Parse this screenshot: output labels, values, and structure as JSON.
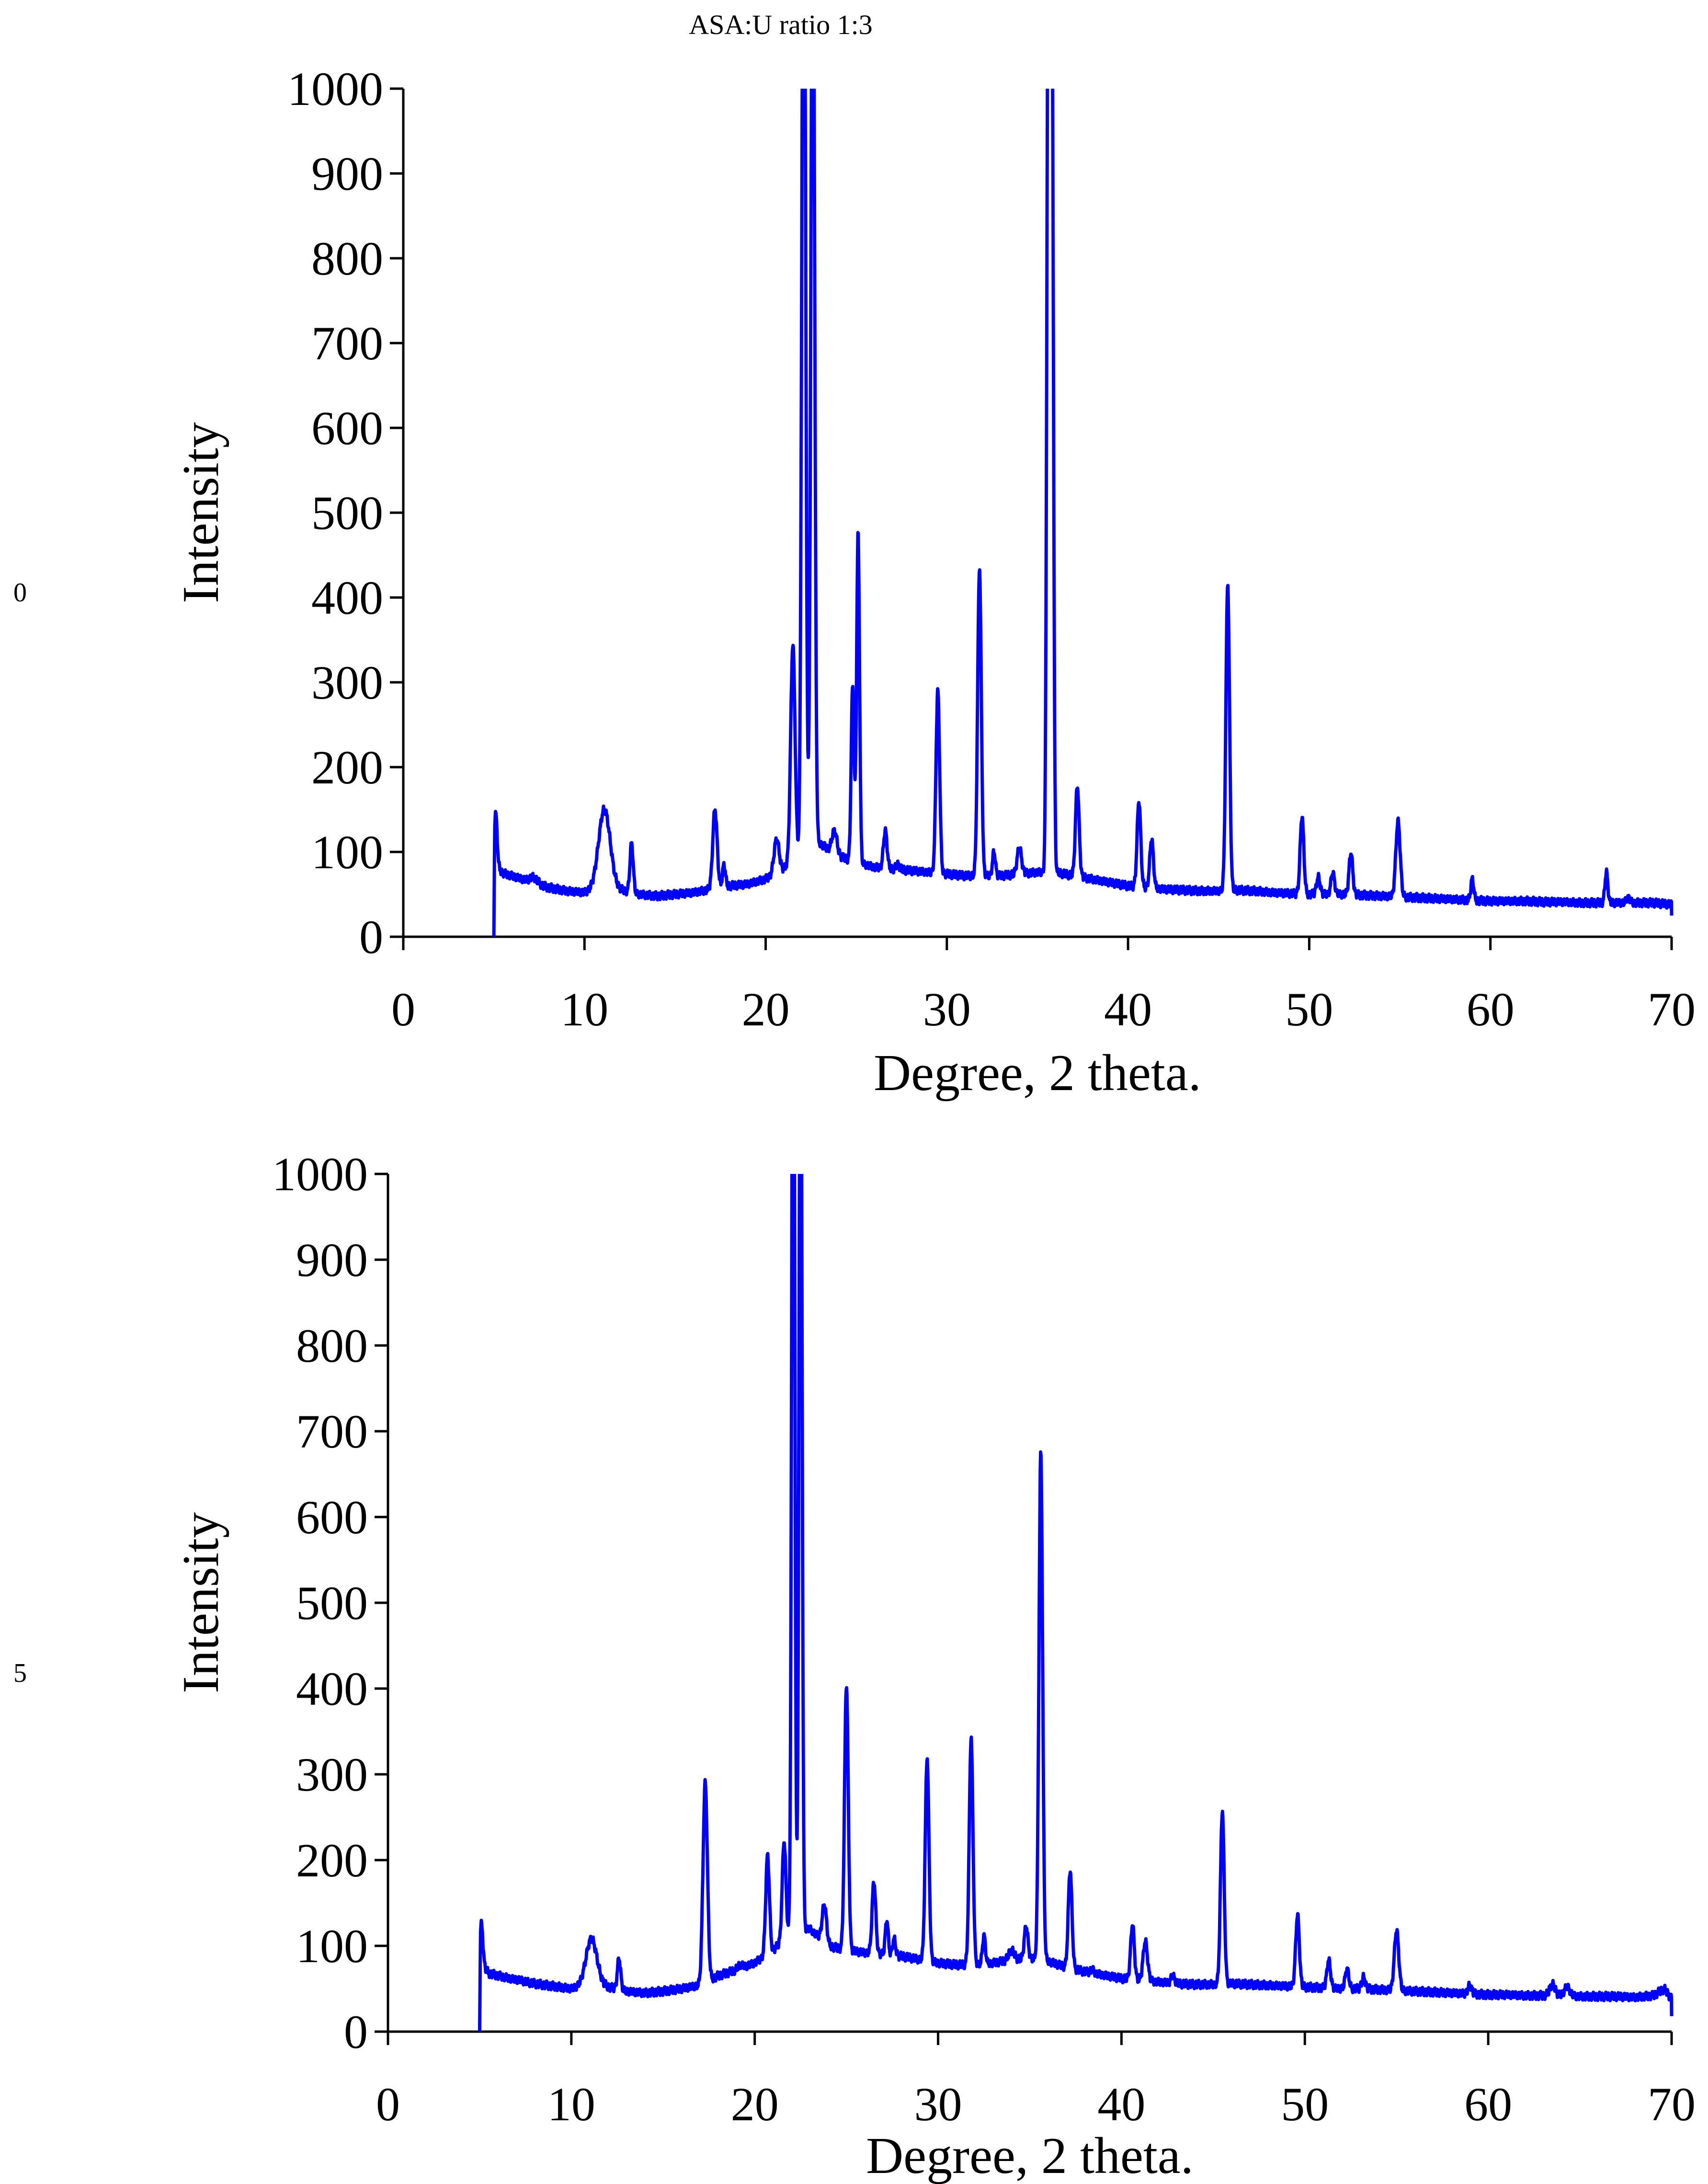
{
  "title": "ASA:U ratio 1:3",
  "side_labels": [
    "0",
    "5"
  ],
  "colors": {
    "series": "#0000ff",
    "axis": "#000000"
  },
  "chart_data": [
    {
      "type": "line",
      "title": "ASA:U ratio 1:3",
      "xlabel": "Degree, 2 theta.",
      "ylabel": "Intensity",
      "xlim": [
        0,
        70
      ],
      "ylim": [
        0,
        1000
      ],
      "xticks": [
        0,
        10,
        20,
        30,
        40,
        50,
        60,
        70
      ],
      "yticks": [
        0,
        100,
        200,
        300,
        400,
        500,
        600,
        700,
        800,
        900,
        1000
      ],
      "grid": false,
      "baseline": [
        [
          5.0,
          0
        ],
        [
          5.05,
          85
        ],
        [
          5.5,
          75
        ],
        [
          7,
          65
        ],
        [
          8,
          58
        ],
        [
          9,
          54
        ],
        [
          10,
          52
        ],
        [
          11,
          58
        ],
        [
          12,
          55
        ],
        [
          13,
          50
        ],
        [
          14,
          48
        ],
        [
          15,
          50
        ],
        [
          16,
          52
        ],
        [
          17,
          56
        ],
        [
          18,
          60
        ],
        [
          19,
          62
        ],
        [
          20,
          68
        ],
        [
          21,
          80
        ],
        [
          22,
          95
        ],
        [
          23,
          110
        ],
        [
          24,
          95
        ],
        [
          25,
          88
        ],
        [
          26,
          82
        ],
        [
          27,
          80
        ],
        [
          28,
          78
        ],
        [
          29,
          76
        ],
        [
          30,
          74
        ],
        [
          31,
          72
        ],
        [
          32,
          72
        ],
        [
          33,
          72
        ],
        [
          34,
          74
        ],
        [
          35,
          76
        ],
        [
          36,
          76
        ],
        [
          37,
          72
        ],
        [
          38,
          68
        ],
        [
          39,
          64
        ],
        [
          40,
          60
        ],
        [
          41,
          58
        ],
        [
          42,
          56
        ],
        [
          43,
          55
        ],
        [
          44,
          54
        ],
        [
          45,
          54
        ],
        [
          46,
          55
        ],
        [
          47,
          54
        ],
        [
          48,
          52
        ],
        [
          49,
          51
        ],
        [
          50,
          50
        ],
        [
          51,
          50
        ],
        [
          52,
          50
        ],
        [
          53,
          49
        ],
        [
          54,
          48
        ],
        [
          55,
          47
        ],
        [
          56,
          46
        ],
        [
          57,
          45
        ],
        [
          58,
          44
        ],
        [
          59,
          43
        ],
        [
          60,
          42
        ],
        [
          61,
          42
        ],
        [
          62,
          42
        ],
        [
          63,
          41
        ],
        [
          64,
          41
        ],
        [
          65,
          40
        ],
        [
          66,
          40
        ],
        [
          67,
          40
        ],
        [
          68,
          40
        ],
        [
          69,
          40
        ],
        [
          70,
          38
        ],
        [
          70,
          25
        ]
      ],
      "peaks": [
        [
          5.1,
          145,
          0.08
        ],
        [
          7.2,
          70,
          0.2
        ],
        [
          11.1,
          150,
          0.32
        ],
        [
          12.6,
          110,
          0.09
        ],
        [
          17.2,
          150,
          0.12
        ],
        [
          17.7,
          85,
          0.08
        ],
        [
          20.6,
          115,
          0.14
        ],
        [
          21.5,
          345,
          0.12
        ],
        [
          22.1,
          1400,
          0.1
        ],
        [
          22.6,
          1300,
          0.1
        ],
        [
          23.8,
          125,
          0.14
        ],
        [
          24.8,
          295,
          0.08
        ],
        [
          25.1,
          475,
          0.08
        ],
        [
          26.6,
          125,
          0.1
        ],
        [
          27.3,
          85,
          0.1
        ],
        [
          29.5,
          290,
          0.1
        ],
        [
          31.8,
          435,
          0.1
        ],
        [
          32.6,
          100,
          0.08
        ],
        [
          34.0,
          105,
          0.12
        ],
        [
          35.6,
          1200,
          0.08
        ],
        [
          35.8,
          1100,
          0.08
        ],
        [
          37.2,
          178,
          0.1
        ],
        [
          40.6,
          160,
          0.1
        ],
        [
          41.3,
          115,
          0.1
        ],
        [
          45.5,
          417,
          0.1
        ],
        [
          49.6,
          142,
          0.1
        ],
        [
          50.5,
          70,
          0.1
        ],
        [
          51.3,
          75,
          0.1
        ],
        [
          52.3,
          99,
          0.1
        ],
        [
          54.9,
          136,
          0.12
        ],
        [
          59.0,
          68,
          0.08
        ],
        [
          66.4,
          76,
          0.08
        ],
        [
          67.6,
          46,
          0.1
        ]
      ]
    },
    {
      "type": "line",
      "title": "",
      "xlabel": "Degree, 2 theta.",
      "ylabel": "Intensity",
      "xlim": [
        0,
        70
      ],
      "ylim": [
        0,
        1000
      ],
      "xticks": [
        0,
        10,
        20,
        30,
        40,
        50,
        60,
        70
      ],
      "yticks": [
        0,
        100,
        200,
        300,
        400,
        500,
        600,
        700,
        800,
        900,
        1000
      ],
      "grid": false,
      "baseline": [
        [
          5.0,
          0
        ],
        [
          5.05,
          80
        ],
        [
          5.5,
          68
        ],
        [
          7,
          60
        ],
        [
          8,
          56
        ],
        [
          9,
          53
        ],
        [
          10,
          50
        ],
        [
          11,
          55
        ],
        [
          12,
          52
        ],
        [
          13,
          47
        ],
        [
          14,
          45
        ],
        [
          15,
          47
        ],
        [
          16,
          50
        ],
        [
          17,
          54
        ],
        [
          18,
          65
        ],
        [
          19,
          72
        ],
        [
          20,
          80
        ],
        [
          21,
          95
        ],
        [
          22,
          115
        ],
        [
          23,
          120
        ],
        [
          24,
          100
        ],
        [
          25,
          95
        ],
        [
          26,
          92
        ],
        [
          27,
          90
        ],
        [
          28,
          88
        ],
        [
          29,
          84
        ],
        [
          30,
          80
        ],
        [
          31,
          78
        ],
        [
          32,
          78
        ],
        [
          33,
          80
        ],
        [
          34,
          84
        ],
        [
          35,
          85
        ],
        [
          36,
          82
        ],
        [
          37,
          75
        ],
        [
          38,
          70
        ],
        [
          39,
          66
        ],
        [
          40,
          62
        ],
        [
          41,
          60
        ],
        [
          42,
          58
        ],
        [
          43,
          56
        ],
        [
          44,
          55
        ],
        [
          45,
          55
        ],
        [
          46,
          56
        ],
        [
          47,
          55
        ],
        [
          48,
          54
        ],
        [
          49,
          53
        ],
        [
          50,
          52
        ],
        [
          51,
          51
        ],
        [
          52,
          50
        ],
        [
          53,
          50
        ],
        [
          54,
          49
        ],
        [
          55,
          48
        ],
        [
          56,
          47
        ],
        [
          57,
          46
        ],
        [
          58,
          45
        ],
        [
          59,
          44
        ],
        [
          60,
          43
        ],
        [
          61,
          43
        ],
        [
          62,
          42
        ],
        [
          63,
          42
        ],
        [
          64,
          42
        ],
        [
          65,
          41
        ],
        [
          66,
          41
        ],
        [
          67,
          41
        ],
        [
          68,
          40
        ],
        [
          69,
          42
        ],
        [
          69.6,
          50
        ],
        [
          70,
          38
        ],
        [
          70,
          18
        ]
      ],
      "peaks": [
        [
          5.1,
          125,
          0.08
        ],
        [
          7.2,
          60,
          0.2
        ],
        [
          11.1,
          108,
          0.3
        ],
        [
          12.6,
          85,
          0.09
        ],
        [
          17.3,
          290,
          0.12
        ],
        [
          19.2,
          78,
          0.12
        ],
        [
          20.7,
          205,
          0.1
        ],
        [
          21.6,
          222,
          0.1
        ],
        [
          22.1,
          1400,
          0.08
        ],
        [
          22.5,
          1300,
          0.08
        ],
        [
          23.8,
          148,
          0.12
        ],
        [
          25.0,
          405,
          0.1
        ],
        [
          26.5,
          175,
          0.1
        ],
        [
          27.2,
          130,
          0.08
        ],
        [
          27.6,
          108,
          0.08
        ],
        [
          29.4,
          320,
          0.1
        ],
        [
          31.8,
          343,
          0.1
        ],
        [
          32.5,
          112,
          0.08
        ],
        [
          34.0,
          95,
          0.15
        ],
        [
          34.8,
          123,
          0.1
        ],
        [
          35.6,
          675,
          0.1
        ],
        [
          37.2,
          188,
          0.1
        ],
        [
          38.4,
          72,
          0.1
        ],
        [
          40.6,
          125,
          0.1
        ],
        [
          41.3,
          105,
          0.12
        ],
        [
          42.8,
          65,
          0.1
        ],
        [
          45.5,
          258,
          0.1
        ],
        [
          49.6,
          136,
          0.1
        ],
        [
          51.3,
          83,
          0.1
        ],
        [
          52.3,
          73,
          0.1
        ],
        [
          53.2,
          63,
          0.1
        ],
        [
          55.0,
          118,
          0.12
        ],
        [
          59.0,
          54,
          0.1
        ],
        [
          63.5,
          55,
          0.15
        ],
        [
          64.3,
          52,
          0.15
        ]
      ]
    }
  ]
}
